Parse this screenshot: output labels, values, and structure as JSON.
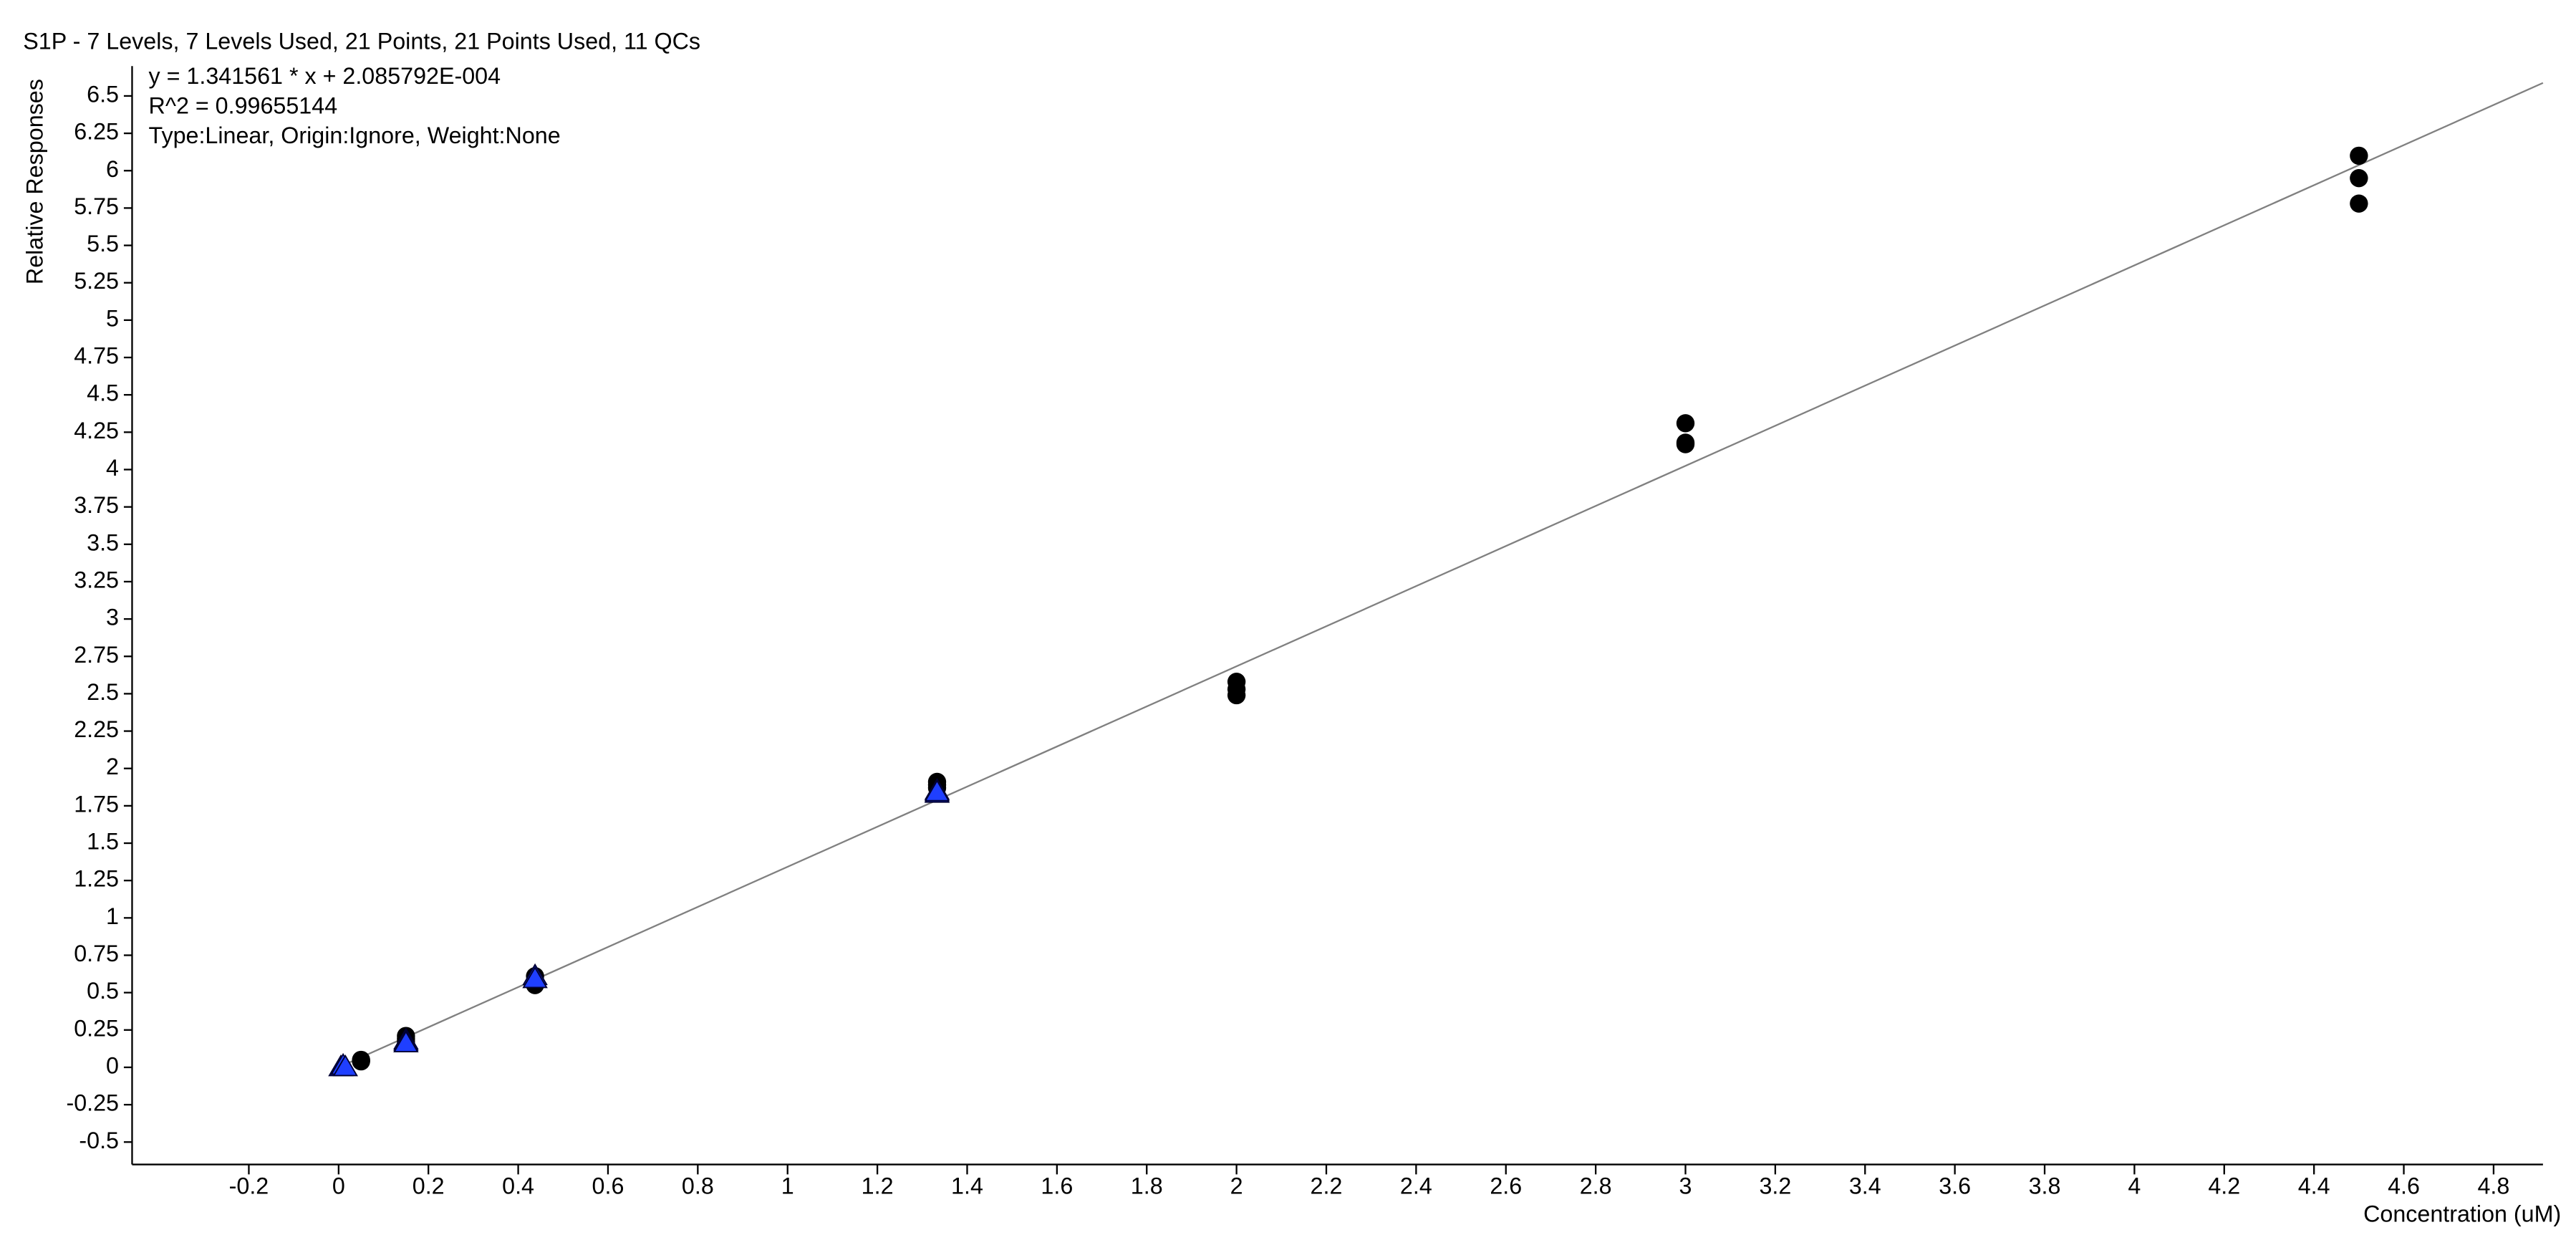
{
  "chart_data": {
    "type": "scatter",
    "title": "S1P - 7 Levels, 7 Levels Used, 21 Points, 21 Points Used, 11 QCs",
    "annotations": [
      "y = 1.341561 * x  + 2.085792E-004",
      "R^2 = 0.99655144",
      "Type:Linear, Origin:Ignore, Weight:None"
    ],
    "fit": {
      "slope": 1.341561,
      "intercept": 0.0002085792,
      "color": "#808080"
    },
    "x_label": "Concentration (uM)",
    "y_label": "Relative Responses",
    "xlim": [
      -0.46,
      4.91
    ],
    "ylim": [
      -0.65,
      6.7
    ],
    "xticks": [
      -0.2,
      0,
      0.2,
      0.4,
      0.6,
      0.8,
      1,
      1.2,
      1.4,
      1.6,
      1.8,
      2,
      2.2,
      2.4,
      2.6,
      2.8,
      3,
      3.2,
      3.4,
      3.6,
      3.8,
      4,
      4.2,
      4.4,
      4.6,
      4.8
    ],
    "yticks": [
      -0.5,
      -0.25,
      0,
      0.25,
      0.5,
      0.75,
      1,
      1.25,
      1.5,
      1.75,
      2,
      2.25,
      2.5,
      2.75,
      3,
      3.25,
      3.5,
      3.75,
      4,
      4.25,
      4.5,
      4.75,
      5,
      5.25,
      5.5,
      5.75,
      6,
      6.25,
      6.5
    ],
    "grid": false,
    "series": [
      {
        "color": "#000000",
        "marker": "circle",
        "x": [
          0.05,
          0.05,
          0.05,
          0.15,
          0.15,
          0.15,
          0.4375,
          0.4375,
          0.4375,
          1.333,
          1.333,
          1.333,
          2,
          2,
          2,
          3,
          3,
          3,
          4.5,
          4.5,
          4.5
        ],
        "values": [
          0.04,
          0.045,
          0.05,
          0.21,
          0.19,
          0.17,
          0.61,
          0.58,
          0.55,
          1.91,
          1.89,
          1.87,
          2.58,
          2.53,
          2.49,
          4.31,
          4.17,
          4.18,
          6.1,
          5.95,
          5.78
        ]
      },
      {
        "color": "#1f3fff",
        "marker": "triangle",
        "x": [
          0.005,
          0.01,
          0.015,
          0.15,
          0.15,
          0.15,
          0.4375,
          0.4375,
          1.333,
          1.333,
          1.333
        ],
        "values": [
          0.0,
          0.01,
          0.0,
          0.18,
          0.17,
          0.16,
          0.61,
          0.59,
          1.85,
          1.83,
          1.84
        ]
      }
    ]
  }
}
